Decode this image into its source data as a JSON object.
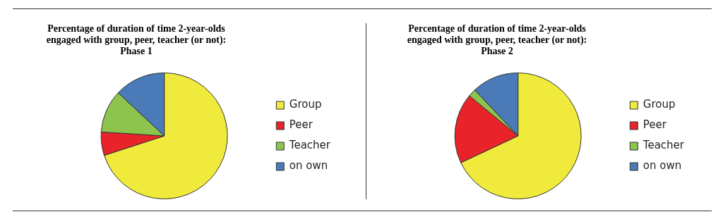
{
  "chart_data": [
    {
      "type": "pie",
      "title": "Percentage of duration of time 2-year-olds engaged with group, peer, teacher (or not): Phase 1",
      "categories": [
        "Group",
        "Peer",
        "Teacher",
        "on own"
      ],
      "values": [
        70,
        6,
        11,
        13
      ],
      "colors": [
        "#f0ea3c",
        "#e8232a",
        "#8cc44e",
        "#4a7ab8"
      ],
      "legend": "right"
    },
    {
      "type": "pie",
      "title": "Percentage of duration of time 2-year-olds engaged with group, peer, teacher (or not): Phase 2",
      "categories": [
        "Group",
        "Peer",
        "Teacher",
        "on own"
      ],
      "values": [
        68,
        18,
        2,
        12
      ],
      "colors": [
        "#f0ea3c",
        "#e8232a",
        "#8cc44e",
        "#4a7ab8"
      ],
      "legend": "right"
    }
  ]
}
